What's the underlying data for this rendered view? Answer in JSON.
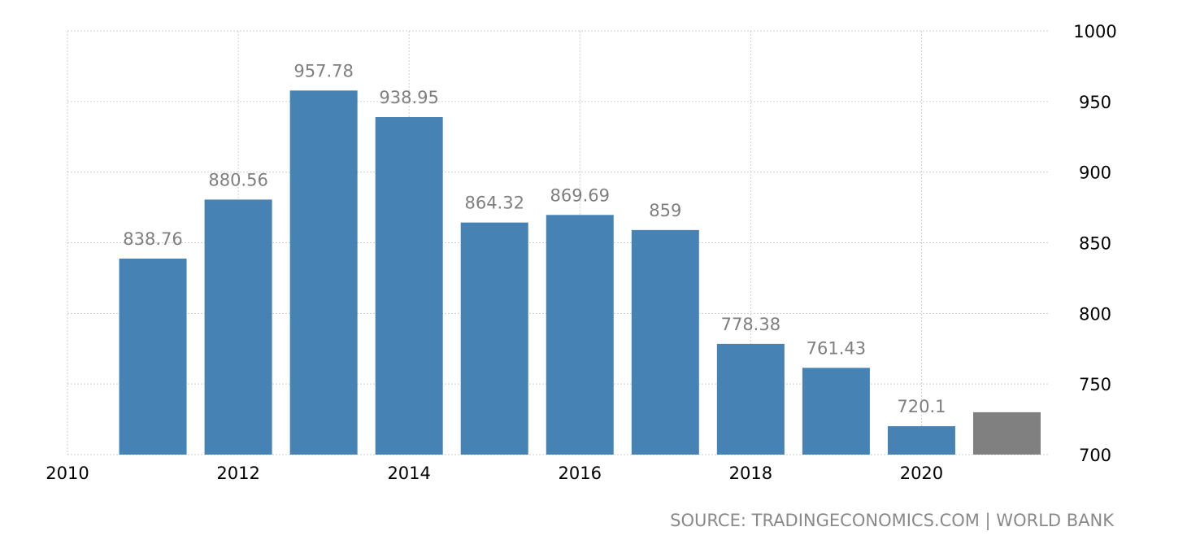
{
  "chart_data": {
    "type": "bar",
    "x": [
      2011,
      2012,
      2013,
      2014,
      2015,
      2016,
      2017,
      2018,
      2019,
      2020,
      2021
    ],
    "values": [
      838.76,
      880.56,
      957.78,
      938.95,
      864.32,
      869.69,
      859,
      778.38,
      761.43,
      720.1,
      730
    ],
    "data_labels": [
      "838.76",
      "880.56",
      "957.78",
      "938.95",
      "864.32",
      "869.69",
      "859",
      "778.38",
      "761.43",
      "720.1",
      ""
    ],
    "bar_colors": [
      "#4682b4",
      "#4682b4",
      "#4682b4",
      "#4682b4",
      "#4682b4",
      "#4682b4",
      "#4682b4",
      "#4682b4",
      "#4682b4",
      "#4682b4",
      "#808080"
    ],
    "x_ticks": [
      "2010",
      "2012",
      "2014",
      "2016",
      "2018",
      "2020"
    ],
    "x_tick_values": [
      2010,
      2012,
      2014,
      2016,
      2018,
      2020
    ],
    "y_ticks": [
      "700",
      "750",
      "800",
      "850",
      "900",
      "950",
      "1000"
    ],
    "y_tick_values": [
      700,
      750,
      800,
      850,
      900,
      950,
      1000
    ],
    "ylim": [
      700,
      1000
    ],
    "xlim": [
      2010,
      2021.5
    ],
    "y_axis_side": "right",
    "grid": true,
    "title": "",
    "xlabel": "",
    "ylabel": ""
  },
  "source": "SOURCE: TRADINGECONOMICS.COM | WORLD BANK"
}
